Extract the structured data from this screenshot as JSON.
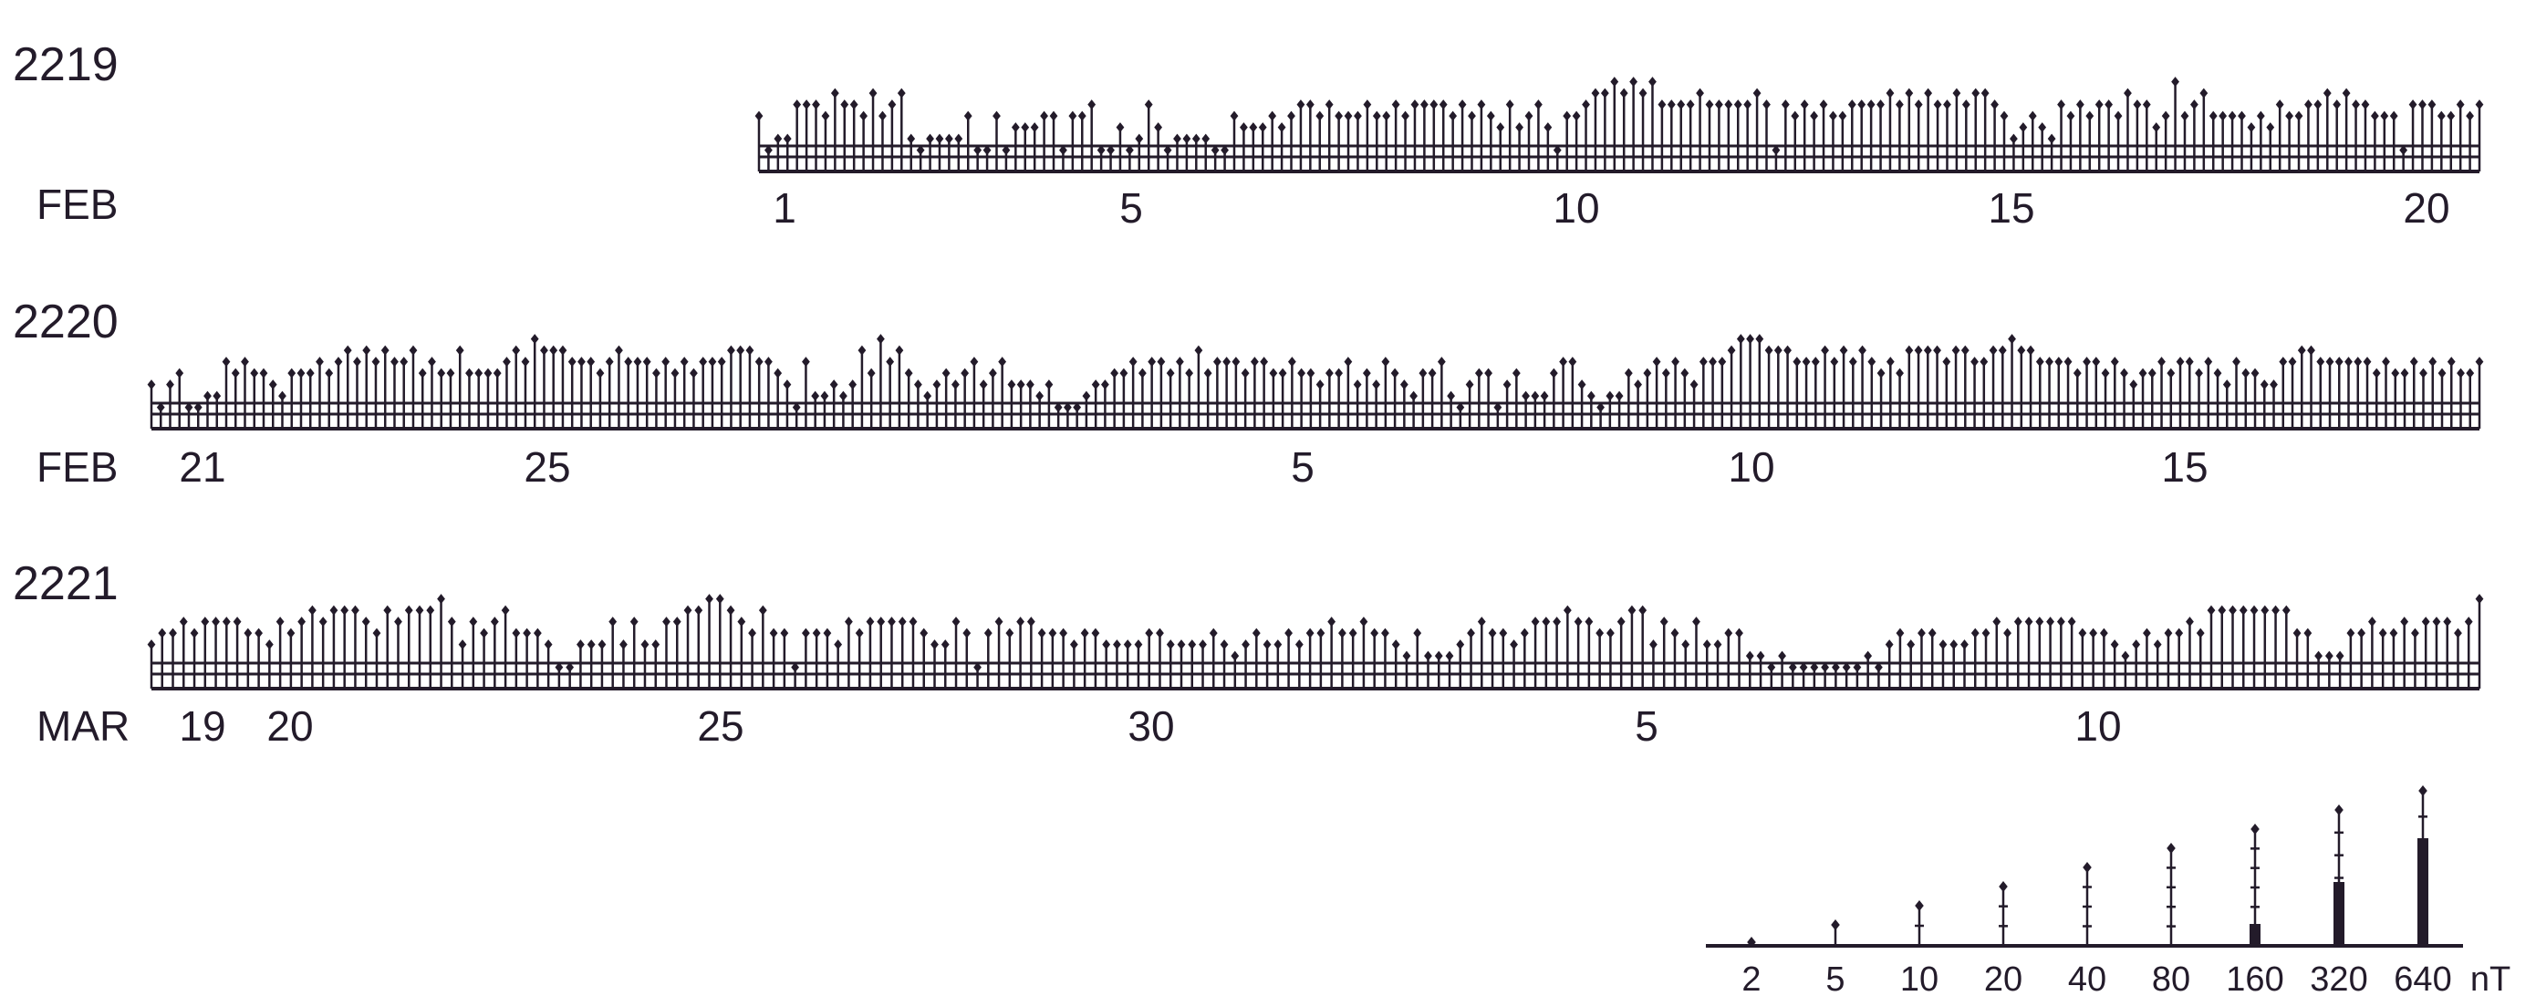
{
  "chart_data": {
    "type": "bar",
    "title": "",
    "xlabel": "",
    "ylabel": "",
    "unit": "nT",
    "rotations": [
      {
        "rotation": "2219",
        "month_label": "FEB",
        "tick_labels": [
          "1",
          "5",
          "10",
          "15",
          "20"
        ],
        "values": [
          40,
          5,
          10,
          10,
          80,
          80,
          80,
          40,
          160,
          80,
          80,
          40,
          160,
          40,
          80,
          160,
          10,
          5,
          10,
          10,
          10,
          10,
          40,
          5,
          5,
          40,
          5,
          20,
          20,
          20,
          40,
          40,
          5,
          40,
          40,
          80,
          5,
          5,
          20,
          5,
          10,
          80,
          20,
          5,
          10,
          10,
          10,
          10,
          5,
          5,
          40,
          20,
          20,
          20,
          40,
          20,
          40,
          80,
          80,
          40,
          80,
          40,
          40,
          40,
          80,
          40,
          40,
          80,
          40,
          80,
          80,
          80,
          80,
          40,
          80,
          40,
          80,
          40,
          20,
          80,
          20,
          40,
          80,
          20,
          5,
          40,
          40,
          80,
          160,
          160,
          320,
          160,
          320,
          160,
          320,
          80,
          80,
          80,
          80,
          160,
          80,
          80,
          80,
          80,
          80,
          160,
          80,
          5,
          80,
          40,
          80,
          40,
          80,
          40,
          40,
          80,
          80,
          80,
          80,
          160,
          80,
          160,
          80,
          160,
          80,
          80,
          160,
          80,
          160,
          160,
          80,
          40,
          10,
          20,
          40,
          20,
          10,
          80,
          40,
          80,
          40,
          80,
          80,
          40,
          160,
          80,
          80,
          20,
          40,
          320,
          40,
          80,
          160,
          40,
          40,
          40,
          40,
          20,
          40,
          20,
          80,
          40,
          40,
          80,
          80,
          160,
          80,
          160,
          80,
          80,
          40,
          40,
          40,
          5,
          80,
          80,
          80,
          40,
          40,
          80,
          40,
          80
        ]
      },
      {
        "rotation": "2220",
        "month_label": "FEB",
        "tick_labels": [
          "21",
          "25",
          "5",
          "10",
          "15"
        ],
        "values": [
          20,
          5,
          20,
          40,
          5,
          5,
          10,
          10,
          80,
          40,
          80,
          40,
          40,
          20,
          10,
          40,
          40,
          40,
          80,
          40,
          80,
          160,
          80,
          160,
          80,
          160,
          80,
          80,
          160,
          40,
          80,
          40,
          40,
          160,
          40,
          40,
          40,
          40,
          80,
          160,
          80,
          320,
          160,
          160,
          160,
          80,
          80,
          80,
          40,
          80,
          160,
          80,
          80,
          80,
          40,
          80,
          40,
          80,
          40,
          80,
          80,
          80,
          160,
          160,
          160,
          80,
          80,
          40,
          20,
          5,
          80,
          10,
          10,
          20,
          10,
          20,
          160,
          40,
          320,
          80,
          160,
          40,
          20,
          10,
          20,
          40,
          20,
          40,
          80,
          20,
          40,
          80,
          20,
          20,
          20,
          10,
          20,
          5,
          5,
          5,
          10,
          20,
          20,
          40,
          40,
          80,
          40,
          80,
          80,
          40,
          80,
          40,
          160,
          40,
          80,
          80,
          80,
          40,
          80,
          80,
          40,
          40,
          80,
          40,
          40,
          20,
          40,
          40,
          80,
          20,
          40,
          20,
          80,
          40,
          20,
          10,
          40,
          40,
          80,
          10,
          5,
          20,
          40,
          40,
          5,
          20,
          40,
          10,
          10,
          10,
          40,
          80,
          80,
          20,
          10,
          5,
          10,
          10,
          40,
          20,
          40,
          80,
          40,
          80,
          40,
          20,
          80,
          80,
          80,
          160,
          320,
          320,
          320,
          160,
          160,
          160,
          80,
          80,
          80,
          160,
          80,
          160,
          80,
          160,
          80,
          40,
          80,
          40,
          160,
          160,
          160,
          160,
          80,
          160,
          160,
          80,
          80,
          160,
          160,
          320,
          160,
          160,
          80,
          80,
          80,
          80,
          40,
          80,
          80,
          40,
          80,
          40,
          20,
          40,
          40,
          80,
          40,
          80,
          80,
          40,
          80,
          40,
          20,
          80,
          40,
          40,
          20,
          20,
          80,
          80,
          160,
          160,
          80,
          80,
          80,
          80,
          80,
          80,
          40,
          80,
          40,
          40,
          80,
          40,
          80,
          40,
          80,
          40,
          40,
          80
        ]
      },
      {
        "rotation": "2221",
        "month_label": "MAR",
        "tick_labels": [
          "19",
          "20",
          "25",
          "30",
          "5",
          "10"
        ],
        "values": [
          20,
          40,
          40,
          80,
          40,
          80,
          80,
          80,
          80,
          40,
          40,
          20,
          80,
          40,
          80,
          160,
          80,
          160,
          160,
          160,
          80,
          40,
          160,
          80,
          160,
          160,
          160,
          320,
          80,
          20,
          80,
          40,
          80,
          160,
          40,
          40,
          40,
          20,
          5,
          5,
          20,
          20,
          20,
          80,
          20,
          80,
          20,
          20,
          80,
          80,
          160,
          160,
          320,
          320,
          160,
          80,
          40,
          160,
          40,
          40,
          5,
          40,
          40,
          40,
          20,
          80,
          40,
          80,
          80,
          80,
          80,
          80,
          40,
          20,
          20,
          80,
          40,
          5,
          40,
          80,
          40,
          80,
          80,
          40,
          40,
          40,
          20,
          40,
          40,
          20,
          20,
          20,
          20,
          40,
          40,
          20,
          20,
          20,
          20,
          40,
          20,
          10,
          20,
          40,
          20,
          20,
          40,
          20,
          40,
          40,
          80,
          40,
          40,
          80,
          40,
          40,
          20,
          10,
          40,
          10,
          10,
          10,
          20,
          40,
          80,
          40,
          40,
          20,
          40,
          80,
          80,
          80,
          160,
          80,
          80,
          40,
          40,
          80,
          160,
          160,
          20,
          80,
          40,
          20,
          80,
          20,
          20,
          40,
          40,
          10,
          10,
          5,
          10,
          5,
          5,
          5,
          5,
          5,
          5,
          5,
          10,
          5,
          20,
          40,
          20,
          40,
          40,
          20,
          20,
          20,
          40,
          40,
          80,
          40,
          80,
          80,
          80,
          80,
          80,
          80,
          40,
          40,
          40,
          20,
          10,
          20,
          40,
          20,
          40,
          40,
          80,
          40,
          160,
          160,
          160,
          160,
          160,
          160,
          160,
          160,
          40,
          40,
          10,
          10,
          10,
          40,
          40,
          80,
          40,
          40,
          80,
          40,
          80,
          80,
          80,
          40,
          80,
          320
        ]
      }
    ],
    "key": {
      "values": [
        "2",
        "5",
        "10",
        "20",
        "40",
        "80",
        "160",
        "320",
        "640"
      ],
      "unit_label": "nT"
    }
  }
}
